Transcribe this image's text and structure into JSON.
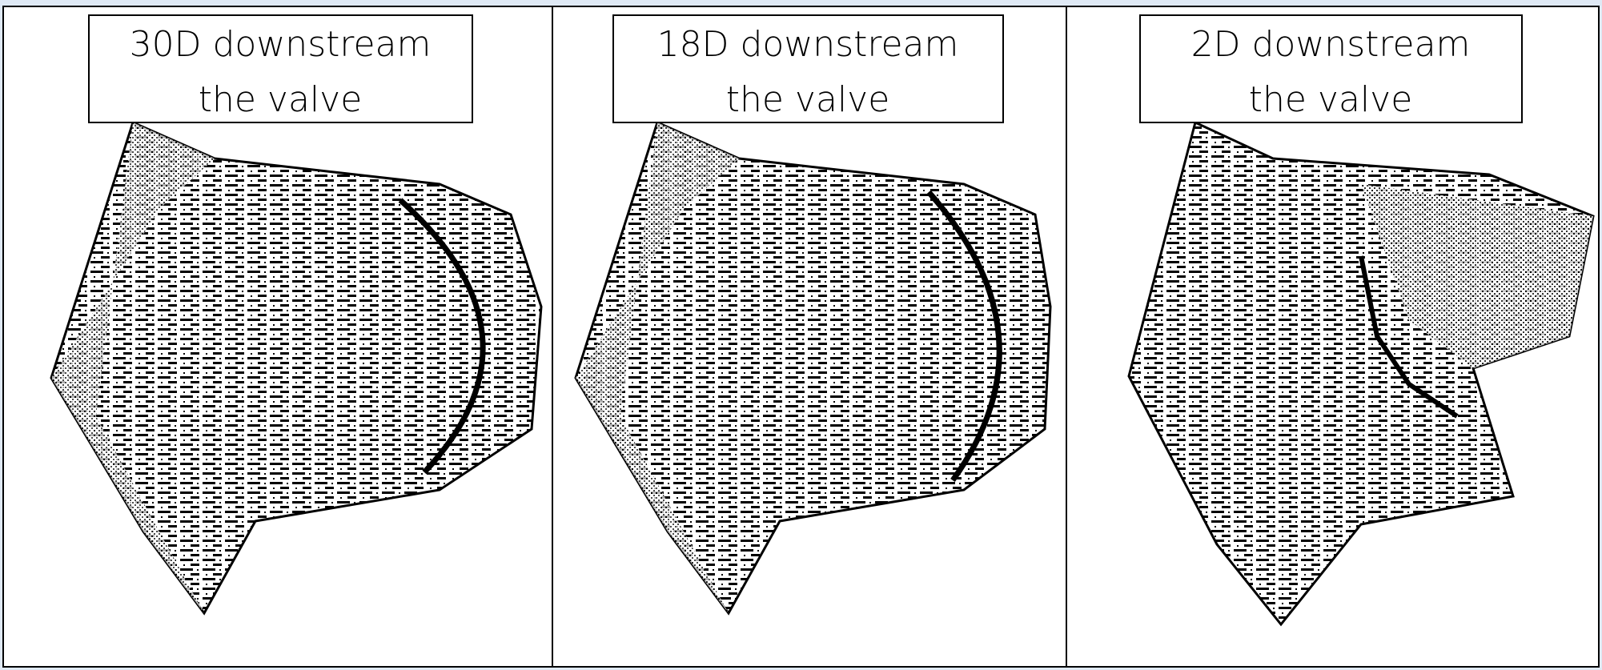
{
  "panels": [
    {
      "label": [
        "30D downstream",
        "the valve"
      ]
    },
    {
      "label": [
        "18D downstream",
        "the valve"
      ]
    },
    {
      "label": [
        "2D downstream",
        "the valve"
      ]
    }
  ]
}
